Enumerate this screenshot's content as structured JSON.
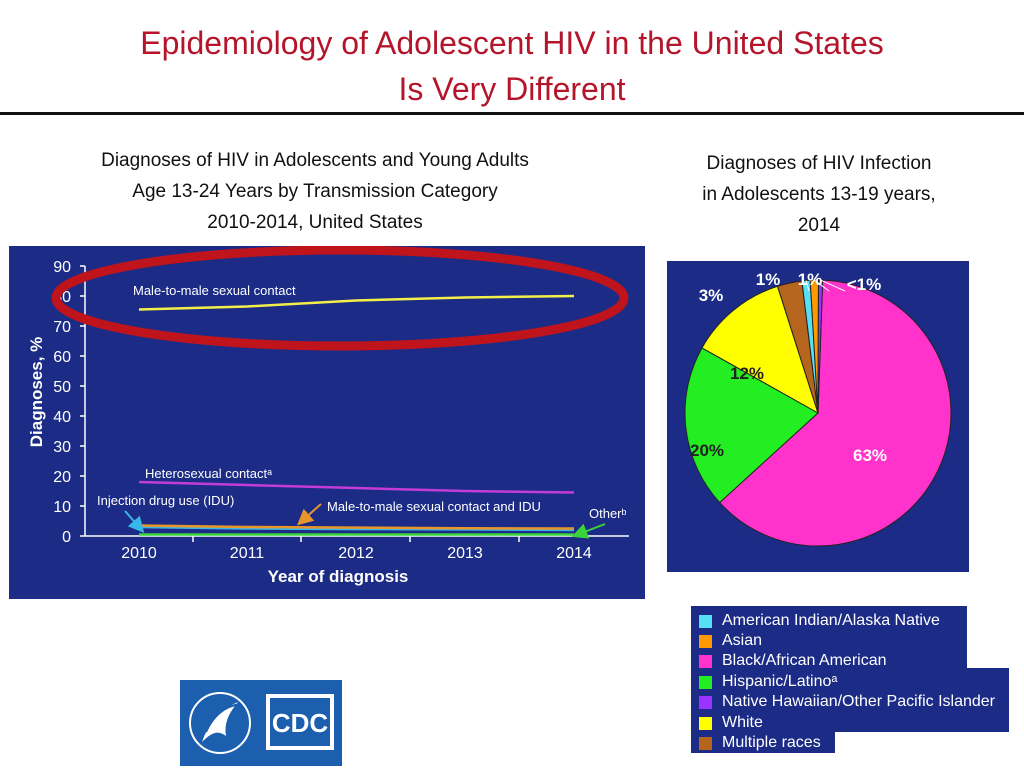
{
  "slide": {
    "title_line1": "Epidemiology of Adolescent HIV in the United States",
    "title_line2": "Is Very Different"
  },
  "left_chart": {
    "subtitle_lines": [
      "Diagnoses of HIV in Adolescents and Young Adults",
      "Age 13-24 Years by Transmission Category",
      "2010-2014, United States"
    ]
  },
  "right_chart": {
    "subtitle_lines": [
      "Diagnoses of HIV Infection",
      "in Adolescents 13-19 years,",
      "2014"
    ]
  },
  "logo": {
    "cdc_text": "CDC"
  },
  "colors": {
    "panel_bg": "#1b2b86",
    "title_red": "#b5152b",
    "highlight_ellipse": "#c0141c"
  },
  "chart_data": [
    {
      "type": "line",
      "xlabel": "Year of diagnosis",
      "ylabel": "Diagnoses, %",
      "x": [
        2010,
        2011,
        2012,
        2013,
        2014
      ],
      "ylim": [
        0,
        90
      ],
      "yticks": [
        0,
        10,
        20,
        30,
        40,
        50,
        60,
        70,
        80,
        90
      ],
      "grid": false,
      "series": [
        {
          "name": "Male-to-male sexual contact",
          "values": [
            75.5,
            76.5,
            78.5,
            79.5,
            80
          ],
          "color": "#f2ef4a"
        },
        {
          "name": "Heterosexual contactᵃ",
          "values": [
            18,
            17,
            16,
            15,
            14.5
          ],
          "color": "#c43bd6"
        },
        {
          "name": "Injection drug use (IDU)",
          "values": [
            3,
            2.5,
            2.3,
            2.2,
            2
          ],
          "color": "#39b6e8"
        },
        {
          "name": "Male-to-male sexual contact and IDU",
          "values": [
            3.5,
            3,
            2.8,
            2.6,
            2.5
          ],
          "color": "#e8962a"
        },
        {
          "name": "Otherᵇ",
          "values": [
            0.5,
            0.5,
            0.5,
            0.5,
            0.5
          ],
          "color": "#39d43b"
        }
      ]
    },
    {
      "type": "pie",
      "slices": [
        {
          "category": "Black/African American",
          "value": 63,
          "label": "63%",
          "color": "#ff33cc"
        },
        {
          "category": "Hispanic/Latinoᵃ",
          "value": 20,
          "label": "20%",
          "color": "#22ee22"
        },
        {
          "category": "White",
          "value": 12,
          "label": "12%",
          "color": "#ffff00"
        },
        {
          "category": "Multiple races",
          "value": 3,
          "label": "3%",
          "color": "#b5651d"
        },
        {
          "category": "American Indian/Alaska Native",
          "value": 1,
          "label": "1%",
          "color": "#55e0f5"
        },
        {
          "category": "Asian",
          "value": 1,
          "label": "1%",
          "color": "#ff9900"
        },
        {
          "category": "Native Hawaiian/Other Pacific Islander",
          "value": 0.5,
          "label": "<1%",
          "color": "#9933ff"
        }
      ],
      "legend": [
        {
          "label": "American Indian/Alaska Native",
          "color": "#55e0f5"
        },
        {
          "label": "Asian",
          "color": "#ff9900"
        },
        {
          "label": "Black/African American",
          "color": "#ff33cc"
        },
        {
          "label": "Hispanic/Latinoᵃ",
          "color": "#22ee22"
        },
        {
          "label": "Native Hawaiian/Other Pacific Islander",
          "color": "#9933ff"
        },
        {
          "label": "White",
          "color": "#ffff00"
        },
        {
          "label": "Multiple races",
          "color": "#b5651d"
        }
      ]
    }
  ]
}
